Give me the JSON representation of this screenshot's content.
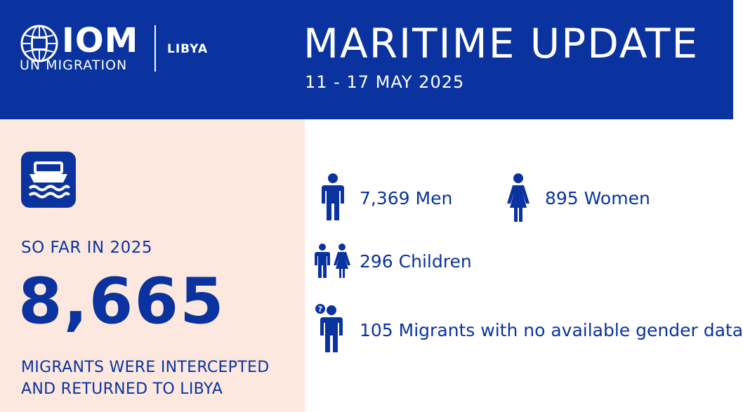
{
  "header": {
    "logo_wordmark": "IOM",
    "logo_subtitle": "UN MIGRATION",
    "country": "LIBYA",
    "title": "MARITIME UPDATE",
    "dates": "11 - 17 MAY 2025"
  },
  "summary": {
    "icon": "boat-icon",
    "period_label": "SO FAR IN 2025",
    "total": "8,665",
    "description_line1": "MIGRANTS WERE INTERCEPTED",
    "description_line2": "AND RETURNED TO LIBYA"
  },
  "breakdown": {
    "men": {
      "icon": "man-icon",
      "label": "7,369 Men"
    },
    "women": {
      "icon": "woman-icon",
      "label": "895 Women"
    },
    "children": {
      "icon": "children-icon",
      "label": "296 Children"
    },
    "unknown": {
      "icon": "unknown-gender-icon",
      "label": "105 Migrants with no available gender data"
    }
  },
  "colors": {
    "brand_blue": "#0a33a0",
    "panel_peach": "#fde8df",
    "white": "#ffffff"
  }
}
